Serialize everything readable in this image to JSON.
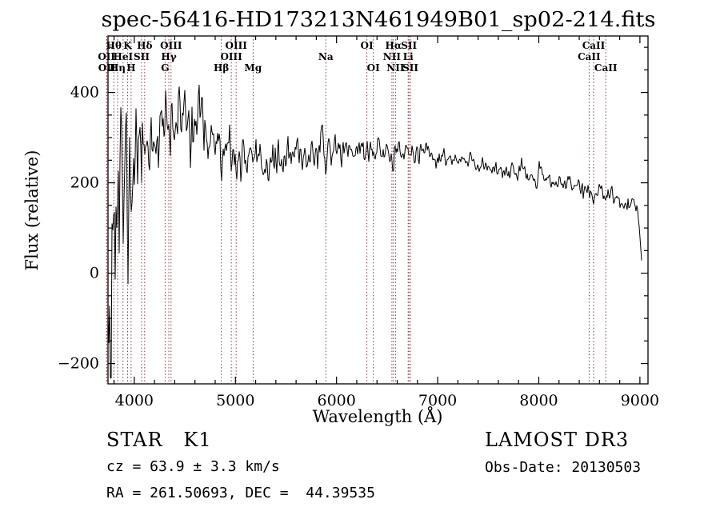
{
  "title": "spec-56416-HD173213N461949B01_sp02-214.fits",
  "chart_data": {
    "type": "line",
    "title": "spec-56416-HD173213N461949B01_sp02-214.fits",
    "xlabel": "Wavelength (Å)",
    "ylabel": "Flux (relative)",
    "xlim": [
      3740,
      9080
    ],
    "ylim": [
      -245,
      525
    ],
    "xticks": [
      4000,
      5000,
      6000,
      7000,
      8000,
      9000
    ],
    "yticks": [
      -200,
      0,
      200,
      400
    ],
    "x_minor_step": 200,
    "y_minor_step": 50,
    "line_color": "#000000",
    "spectral_line_color": "#8b3a3a",
    "noise_seed": 11,
    "continuum": [
      [
        3740,
        70
      ],
      [
        3760,
        95
      ],
      [
        3780,
        110
      ],
      [
        3800,
        130
      ],
      [
        3830,
        150
      ],
      [
        3860,
        165
      ],
      [
        3890,
        185
      ],
      [
        3920,
        210
      ],
      [
        3950,
        235
      ],
      [
        3980,
        255
      ],
      [
        4000,
        268
      ],
      [
        4050,
        285
      ],
      [
        4100,
        292
      ],
      [
        4150,
        300
      ],
      [
        4200,
        306
      ],
      [
        4250,
        314
      ],
      [
        4300,
        320
      ],
      [
        4350,
        328
      ],
      [
        4400,
        333
      ],
      [
        4450,
        338
      ],
      [
        4500,
        342
      ],
      [
        4550,
        344
      ],
      [
        4600,
        338
      ],
      [
        4650,
        332
      ],
      [
        4700,
        322
      ],
      [
        4750,
        305
      ],
      [
        4800,
        290
      ],
      [
        4850,
        272
      ],
      [
        4900,
        262
      ],
      [
        4950,
        255
      ],
      [
        5000,
        250
      ],
      [
        5050,
        246
      ],
      [
        5100,
        243
      ],
      [
        5150,
        241
      ],
      [
        5200,
        240
      ],
      [
        5300,
        243
      ],
      [
        5400,
        248
      ],
      [
        5500,
        253
      ],
      [
        5600,
        258
      ],
      [
        5700,
        263
      ],
      [
        5800,
        268
      ],
      [
        5900,
        272
      ],
      [
        6000,
        277
      ],
      [
        6100,
        276
      ],
      [
        6200,
        274
      ],
      [
        6300,
        271
      ],
      [
        6400,
        273
      ],
      [
        6500,
        271
      ],
      [
        6600,
        269
      ],
      [
        6700,
        268
      ],
      [
        6800,
        264
      ],
      [
        6900,
        259
      ],
      [
        7000,
        255
      ],
      [
        7100,
        251
      ],
      [
        7200,
        248
      ],
      [
        7300,
        245
      ],
      [
        7400,
        241
      ],
      [
        7500,
        237
      ],
      [
        7600,
        232
      ],
      [
        7700,
        227
      ],
      [
        7800,
        221
      ],
      [
        7900,
        215
      ],
      [
        8000,
        210
      ],
      [
        8100,
        205
      ],
      [
        8200,
        201
      ],
      [
        8300,
        197
      ],
      [
        8400,
        192
      ],
      [
        8500,
        186
      ],
      [
        8600,
        179
      ],
      [
        8700,
        171
      ],
      [
        8800,
        162
      ],
      [
        8900,
        151
      ],
      [
        8950,
        143
      ],
      [
        8980,
        125
      ],
      [
        9000,
        90
      ],
      [
        9012,
        35
      ],
      [
        9022,
        5
      ]
    ],
    "noise_sigma": [
      [
        3740,
        185
      ],
      [
        3780,
        175
      ],
      [
        3820,
        160
      ],
      [
        3860,
        140
      ],
      [
        3900,
        115
      ],
      [
        3940,
        95
      ],
      [
        3980,
        75
      ],
      [
        4020,
        58
      ],
      [
        4100,
        48
      ],
      [
        4200,
        45
      ],
      [
        4300,
        43
      ],
      [
        4400,
        40
      ],
      [
        4500,
        38
      ],
      [
        4600,
        36
      ],
      [
        4700,
        33
      ],
      [
        4800,
        30
      ],
      [
        4900,
        28
      ],
      [
        5000,
        26
      ],
      [
        5200,
        22
      ],
      [
        5400,
        20
      ],
      [
        5600,
        19
      ],
      [
        5800,
        19
      ],
      [
        6000,
        17
      ],
      [
        6200,
        16
      ],
      [
        6400,
        15
      ],
      [
        6600,
        14
      ],
      [
        6800,
        13
      ],
      [
        7000,
        12
      ],
      [
        7300,
        11
      ],
      [
        7600,
        10
      ],
      [
        8000,
        10
      ],
      [
        8400,
        10
      ],
      [
        8700,
        11
      ],
      [
        8900,
        12
      ],
      [
        9022,
        6
      ]
    ],
    "absorption_dips": [
      [
        3934,
        70,
        10
      ],
      [
        3969,
        65,
        10
      ],
      [
        4102,
        50,
        9
      ],
      [
        4341,
        45,
        9
      ],
      [
        4861,
        45,
        9
      ],
      [
        5175,
        25,
        10
      ],
      [
        5894,
        28,
        7
      ],
      [
        6563,
        40,
        7
      ],
      [
        8498,
        22,
        7
      ],
      [
        8542,
        28,
        7
      ],
      [
        8662,
        24,
        7
      ]
    ],
    "spectral_lines": [
      {
        "label": "Hθ",
        "wavelength": 3798,
        "row": 0
      },
      {
        "label": "K",
        "wavelength": 3934,
        "row": 0
      },
      {
        "label": "Hδ",
        "wavelength": 4102,
        "row": 0
      },
      {
        "label": "OII",
        "wavelength": 3726,
        "row": 1
      },
      {
        "label": "HeI",
        "wavelength": 3889,
        "row": 1
      },
      {
        "label": "SII",
        "wavelength": 4072,
        "row": 1
      },
      {
        "label": "OII",
        "wavelength": 3729,
        "row": 2
      },
      {
        "label": "Hη",
        "wavelength": 3835,
        "row": 2
      },
      {
        "label": "H",
        "wavelength": 3969,
        "row": 2
      },
      {
        "label": "OIII",
        "wavelength": 4363,
        "row": 0
      },
      {
        "label": "Hγ",
        "wavelength": 4341,
        "row": 1
      },
      {
        "label": "G",
        "wavelength": 4305,
        "row": 2
      },
      {
        "label": "OIII",
        "wavelength": 5007,
        "row": 0
      },
      {
        "label": "OIII",
        "wavelength": 4959,
        "row": 1
      },
      {
        "label": "Hβ",
        "wavelength": 4861,
        "row": 2
      },
      {
        "label": "Mg",
        "wavelength": 5175,
        "row": 2
      },
      {
        "label": "Na",
        "wavelength": 5894,
        "row": 1
      },
      {
        "label": "OI",
        "wavelength": 6300,
        "row": 0
      },
      {
        "label": "OI",
        "wavelength": 6364,
        "row": 2
      },
      {
        "label": "Hα",
        "wavelength": 6563,
        "row": 0
      },
      {
        "label": "SII",
        "wavelength": 6716,
        "row": 0
      },
      {
        "label": "NII",
        "wavelength": 6548,
        "row": 1
      },
      {
        "label": "Li",
        "wavelength": 6708,
        "row": 1
      },
      {
        "label": "NII",
        "wavelength": 6583,
        "row": 2
      },
      {
        "label": "SII",
        "wavelength": 6731,
        "row": 2
      },
      {
        "label": "CaII",
        "wavelength": 8542,
        "row": 0
      },
      {
        "label": "CaII",
        "wavelength": 8498,
        "row": 1
      },
      {
        "label": "CaII",
        "wavelength": 8662,
        "row": 2
      }
    ]
  },
  "footer": {
    "left": {
      "class_line": "STAR   K1",
      "cz_line": "cz = 63.9 ± 3.3 km/s",
      "radec_line": "RA = 261.50693, DEC =  44.39535"
    },
    "right": {
      "survey_line": "LAMOST DR3",
      "obsdate_line": "Obs-Date: 20130503"
    }
  }
}
